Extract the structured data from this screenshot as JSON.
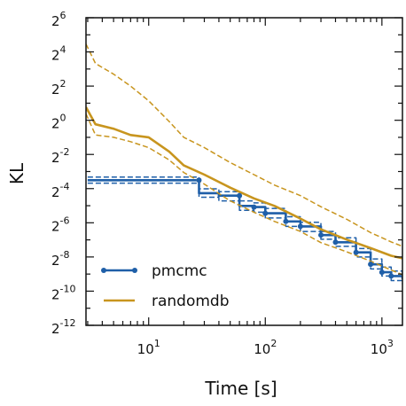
{
  "chart_data": {
    "type": "line",
    "xlabel": "Time [s]",
    "ylabel": "KL",
    "x_scale": "log10",
    "y_scale": "log2",
    "xlim": [
      2.9,
      1500
    ],
    "ylim": [
      0.000244,
      64
    ],
    "x_ticks": [
      {
        "value": 10,
        "base": "10",
        "exp": "1"
      },
      {
        "value": 100,
        "base": "10",
        "exp": "2"
      },
      {
        "value": 1000,
        "base": "10",
        "exp": "3"
      }
    ],
    "y_ticks": [
      {
        "value": 64,
        "base": "2",
        "exp": "6"
      },
      {
        "value": 16,
        "base": "2",
        "exp": "4"
      },
      {
        "value": 4,
        "base": "2",
        "exp": "2"
      },
      {
        "value": 1,
        "base": "2",
        "exp": "0"
      },
      {
        "value": 0.25,
        "base": "2",
        "exp": "-2"
      },
      {
        "value": 0.0625,
        "base": "2",
        "exp": "-4"
      },
      {
        "value": 0.015625,
        "base": "2",
        "exp": "-6"
      },
      {
        "value": 0.00390625,
        "base": "2",
        "exp": "-8"
      },
      {
        "value": 0.0009765625,
        "base": "2",
        "exp": "-10"
      },
      {
        "value": 0.000244140625,
        "base": "2",
        "exp": "-12"
      }
    ],
    "grid": false,
    "legend_position": "lower-left",
    "legend": [
      {
        "label": "pmcmc",
        "color": "#1f5fa8",
        "marker": true
      },
      {
        "label": "randomdb",
        "color": "#c8951e",
        "marker": false
      }
    ],
    "series": [
      {
        "name": "pmcmc",
        "role": "median",
        "color": "#1f5fa8",
        "style": "solid",
        "step": true,
        "x": [
          3,
          5,
          10,
          20,
          27,
          27,
          40,
          60,
          60,
          80,
          100,
          150,
          200,
          300,
          400,
          600,
          800,
          1000,
          1200,
          1500
        ],
        "y": [
          0.088,
          0.088,
          0.088,
          0.088,
          0.088,
          0.052,
          0.047,
          0.047,
          0.031,
          0.0295,
          0.023,
          0.0165,
          0.0135,
          0.0095,
          0.0071,
          0.0047,
          0.0029,
          0.0021,
          0.0018,
          0.0016
        ]
      },
      {
        "name": "pmcmc",
        "role": "upper",
        "color": "#1f5fa8",
        "style": "dashed",
        "step": true,
        "x": [
          3,
          5,
          10,
          20,
          27,
          27,
          40,
          60,
          60,
          80,
          100,
          150,
          200,
          300,
          400,
          600,
          800,
          1000,
          1200,
          1500
        ],
        "y": [
          0.1,
          0.1,
          0.1,
          0.1,
          0.1,
          0.062,
          0.055,
          0.055,
          0.038,
          0.035,
          0.028,
          0.02,
          0.016,
          0.011,
          0.0085,
          0.0055,
          0.0036,
          0.0026,
          0.0022,
          0.0019
        ]
      },
      {
        "name": "pmcmc",
        "role": "lower",
        "color": "#1f5fa8",
        "style": "dashed",
        "step": true,
        "x": [
          3,
          5,
          10,
          20,
          27,
          27,
          40,
          60,
          60,
          80,
          100,
          150,
          200,
          300,
          400,
          600,
          800,
          1000,
          1200,
          1500
        ],
        "y": [
          0.078,
          0.078,
          0.078,
          0.078,
          0.078,
          0.044,
          0.038,
          0.038,
          0.026,
          0.024,
          0.019,
          0.0135,
          0.011,
          0.008,
          0.006,
          0.0039,
          0.0024,
          0.0018,
          0.0015,
          0.0013
        ]
      },
      {
        "name": "randomdb",
        "role": "median",
        "color": "#c8951e",
        "style": "solid",
        "step": false,
        "x": [
          2.9,
          3.5,
          5,
          7,
          10,
          15,
          20,
          30,
          50,
          80,
          120,
          200,
          300,
          500,
          800,
          1200,
          1500
        ],
        "y": [
          1.7,
          0.85,
          0.71,
          0.55,
          0.5,
          0.28,
          0.16,
          0.11,
          0.065,
          0.042,
          0.031,
          0.0185,
          0.012,
          0.0079,
          0.0056,
          0.0041,
          0.0037
        ]
      },
      {
        "name": "randomdb",
        "role": "upper",
        "color": "#c8951e",
        "style": "dashed",
        "step": false,
        "x": [
          2.9,
          3.5,
          5,
          7,
          10,
          15,
          20,
          30,
          50,
          80,
          120,
          200,
          300,
          500,
          800,
          1200,
          1500
        ],
        "y": [
          22,
          10,
          6.5,
          4,
          2.2,
          0.95,
          0.5,
          0.33,
          0.18,
          0.11,
          0.072,
          0.047,
          0.03,
          0.018,
          0.0105,
          0.0072,
          0.006
        ]
      },
      {
        "name": "randomdb",
        "role": "lower",
        "color": "#c8951e",
        "style": "dashed",
        "step": false,
        "x": [
          2.9,
          3.5,
          5,
          7,
          10,
          15,
          20,
          30,
          50,
          80,
          120,
          200,
          300,
          500,
          800,
          1200,
          1500
        ],
        "y": [
          1.3,
          0.55,
          0.5,
          0.42,
          0.33,
          0.2,
          0.12,
          0.075,
          0.038,
          0.024,
          0.0165,
          0.011,
          0.007,
          0.0048,
          0.0033,
          0.0023,
          0.0019
        ]
      }
    ],
    "pmcmc_markers": {
      "x": [
        27,
        60,
        80,
        100,
        150,
        200,
        300,
        400,
        600,
        800,
        1000,
        1200
      ],
      "y": [
        0.088,
        0.047,
        0.0295,
        0.023,
        0.0165,
        0.0135,
        0.0095,
        0.0071,
        0.0047,
        0.0029,
        0.0021,
        0.0018
      ]
    },
    "pmcmc_initial_dotted": {
      "x_start": 3,
      "x_end": 22,
      "y": [
        0.1,
        0.088,
        0.078
      ]
    }
  }
}
